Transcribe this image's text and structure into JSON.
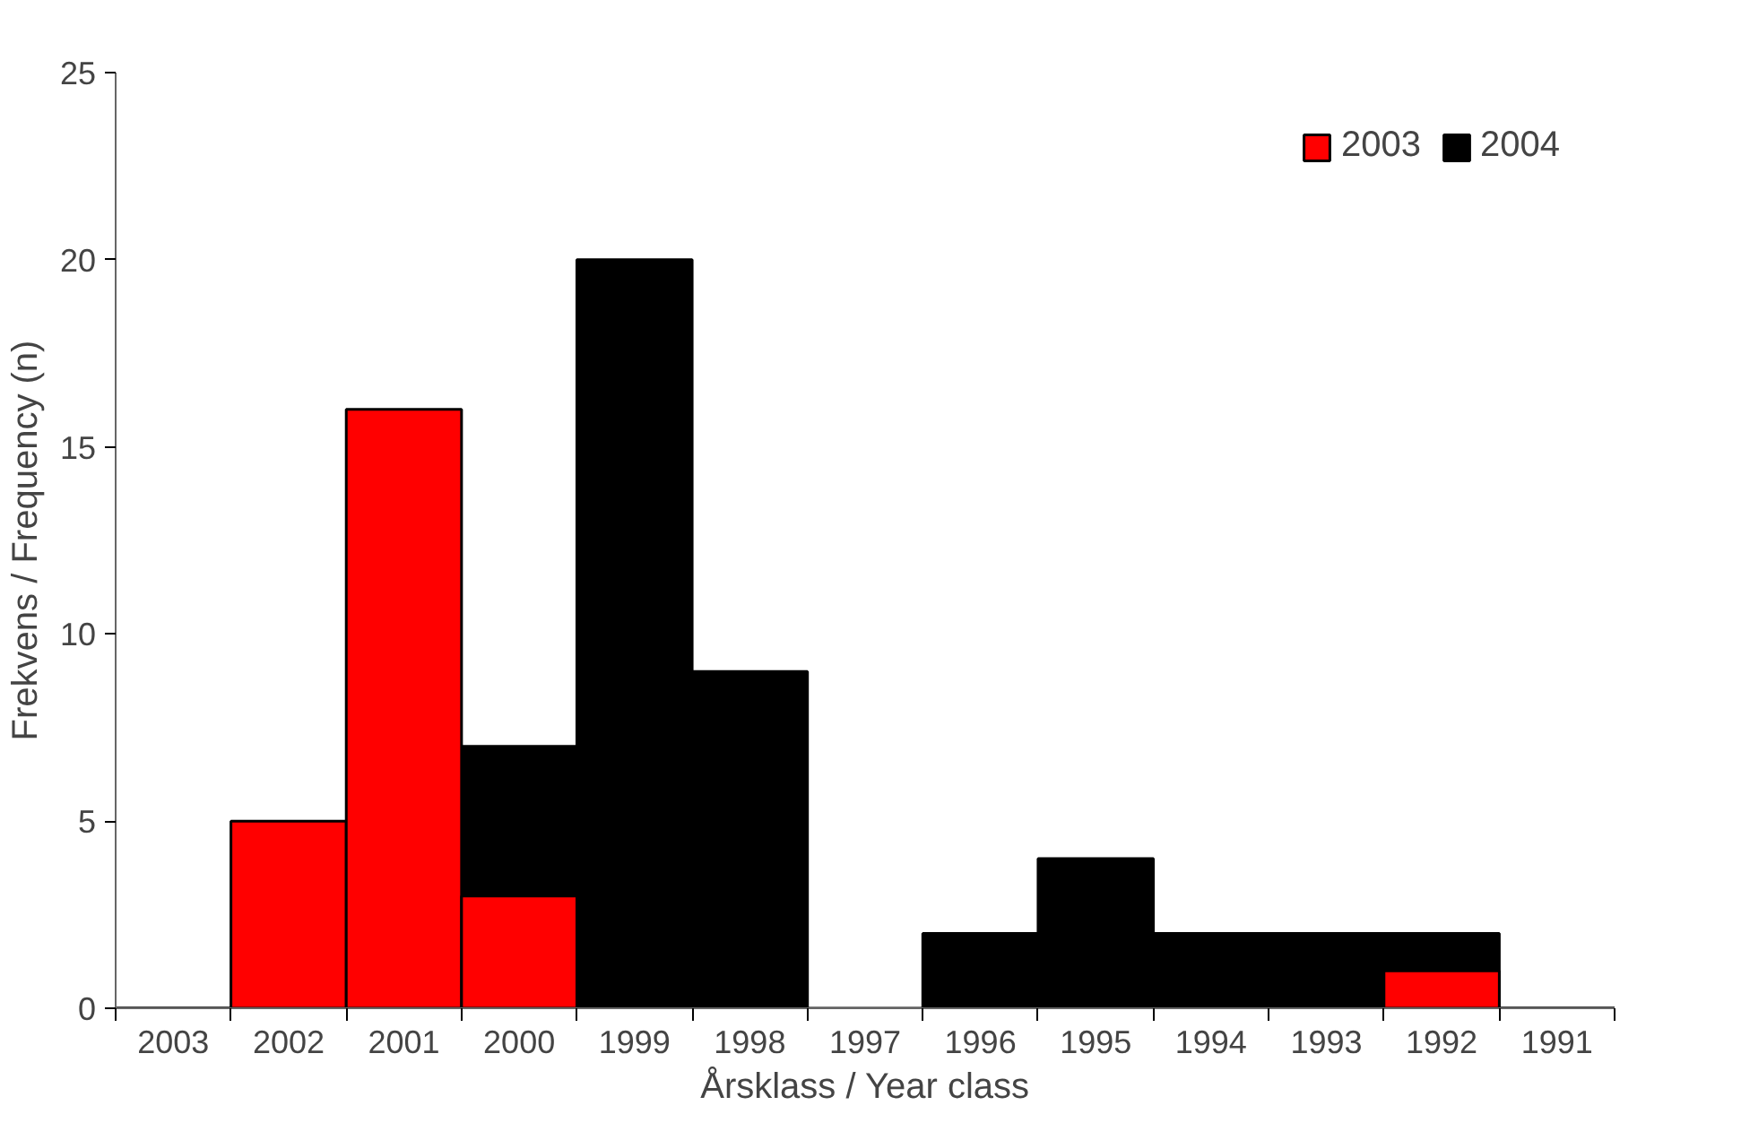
{
  "chart_data": {
    "type": "bar",
    "xlabel": "Årsklass / Year class",
    "ylabel": "Frekvens / Frequency (n)",
    "categories": [
      "2003",
      "2002",
      "2001",
      "2000",
      "1999",
      "1998",
      "1997",
      "1996",
      "1995",
      "1994",
      "1993",
      "1992",
      "1991"
    ],
    "series": [
      {
        "name": "2004",
        "color": "#000000",
        "values": [
          0,
          null,
          null,
          7,
          20,
          9,
          0,
          2,
          4,
          2,
          2,
          2,
          0
        ]
      },
      {
        "name": "2003",
        "color": "#ff0000",
        "values": [
          0,
          5,
          16,
          3,
          null,
          null,
          null,
          null,
          null,
          null,
          null,
          1,
          0
        ]
      }
    ],
    "ylim": [
      0,
      25
    ],
    "yticks": [
      0,
      5,
      10,
      15,
      20,
      25
    ],
    "legend": "top right",
    "grid": false
  }
}
